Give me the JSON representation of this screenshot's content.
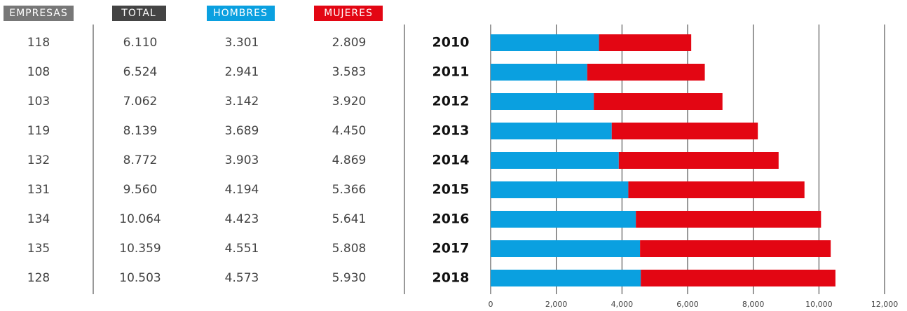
{
  "table": {
    "headers": [
      "EMPRESAS",
      "TOTAL"
    ],
    "rows": [
      [
        "118",
        "6.110"
      ],
      [
        "108",
        "6.524"
      ],
      [
        "103",
        "7.062"
      ],
      [
        "119",
        "8.139"
      ],
      [
        "132",
        "8.772"
      ],
      [
        "131",
        "9.560"
      ],
      [
        "134",
        "10.064"
      ],
      [
        "135",
        "10.359"
      ],
      [
        "128",
        "10.503"
      ]
    ]
  },
  "chart_data": {
    "type": "stacked-bar-horizontal",
    "categories": [
      "2010",
      "2011",
      "2012",
      "2013",
      "2014",
      "2015",
      "2016",
      "2017",
      "2018"
    ],
    "series": [
      {
        "name": "HOMBRES",
        "color": "#0aa0e0",
        "values": [
          3301,
          2941,
          3142,
          3689,
          3903,
          4194,
          4423,
          4551,
          4573
        ],
        "value_labels": [
          "3.301",
          "2.941",
          "3.142",
          "3.689",
          "3.903",
          "4.194",
          "4.423",
          "4.551",
          "4.573"
        ]
      },
      {
        "name": "MUJERES",
        "color": "#e30613",
        "values": [
          2809,
          3583,
          3920,
          4450,
          4869,
          5366,
          5641,
          5808,
          5930
        ],
        "value_labels": [
          "2.809",
          "3.583",
          "3.920",
          "4.450",
          "4.869",
          "5.366",
          "5.641",
          "5.808",
          "5.930"
        ]
      }
    ],
    "xlim": [
      0,
      12000
    ],
    "xticks": [
      0,
      {
        "value": 2000,
        "label": "2,000"
      },
      {
        "value": 4000,
        "label": "4,000"
      },
      {
        "value": 6000,
        "label": "6,000"
      },
      {
        "value": 8000,
        "label": "8,000"
      },
      {
        "value": 10000,
        "label": "10,000"
      },
      {
        "value": 12000,
        "label": "12,000"
      }
    ],
    "grid": true
  }
}
